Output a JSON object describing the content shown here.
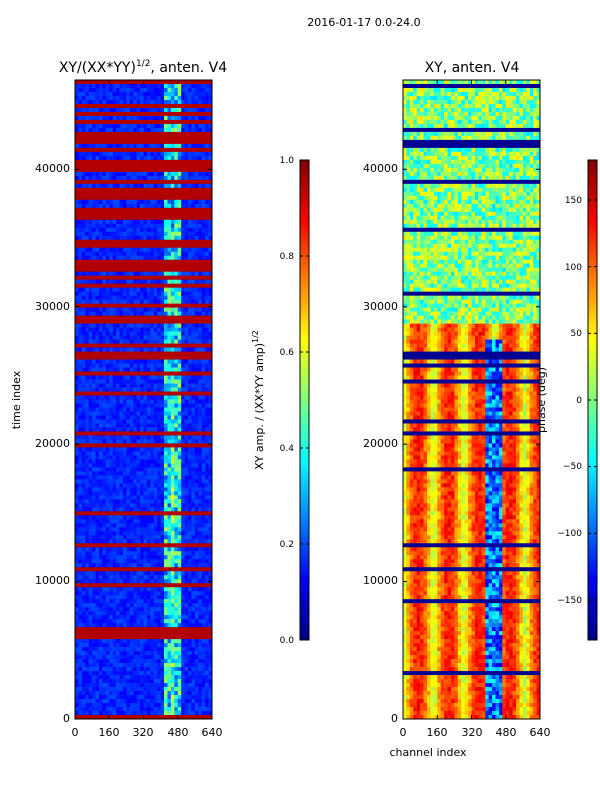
{
  "figure": {
    "suptitle": "2016-01-17 0.0-24.0"
  },
  "colors": {
    "jet": [
      "#00007f",
      "#0000ff",
      "#007fff",
      "#00ffff",
      "#7fff7f",
      "#ffff00",
      "#ff7f00",
      "#ff0000",
      "#7f0000"
    ]
  },
  "chart_data": [
    {
      "type": "heatmap",
      "title_main": "XY/(XX*YY)",
      "title_exp": "1/2",
      "title_rest": ", anten. V4",
      "ylabel": "time index",
      "xlabel": "",
      "xlim": [
        0,
        640
      ],
      "ylim": [
        0,
        46500
      ],
      "xticks": [
        "0",
        "160",
        "320",
        "480",
        "640"
      ],
      "yticks": [
        "0",
        "10000",
        "20000",
        "30000",
        "40000"
      ],
      "ytick_values": [
        0,
        10000,
        20000,
        30000,
        40000
      ],
      "colorbar": {
        "label_main": "XY amp. / (XX*YY amp)",
        "label_exp": "1/2",
        "range": [
          0.0,
          1.0
        ],
        "ticks": [
          "0.0",
          "0.2",
          "0.4",
          "0.6",
          "0.8",
          "1.0"
        ],
        "tick_values": [
          0.0,
          0.2,
          0.4,
          0.6,
          0.8,
          1.0
        ]
      }
    },
    {
      "type": "heatmap",
      "title_main": "XY, anten. V4",
      "ylabel": "",
      "xlabel": "channel index",
      "xlim": [
        0,
        640
      ],
      "ylim": [
        0,
        46500
      ],
      "xticks": [
        "0",
        "160",
        "320",
        "480",
        "640"
      ],
      "yticks": [
        "0",
        "10000",
        "20000",
        "30000",
        "40000"
      ],
      "ytick_values": [
        0,
        10000,
        20000,
        30000,
        40000
      ],
      "colorbar": {
        "label": "phase (deg)",
        "range": [
          -180,
          180
        ],
        "ticks": [
          "−150",
          "−100",
          "−50",
          "0",
          "50",
          "100",
          "150"
        ],
        "tick_values": [
          -150,
          -100,
          -50,
          0,
          50,
          100,
          150
        ]
      }
    }
  ]
}
